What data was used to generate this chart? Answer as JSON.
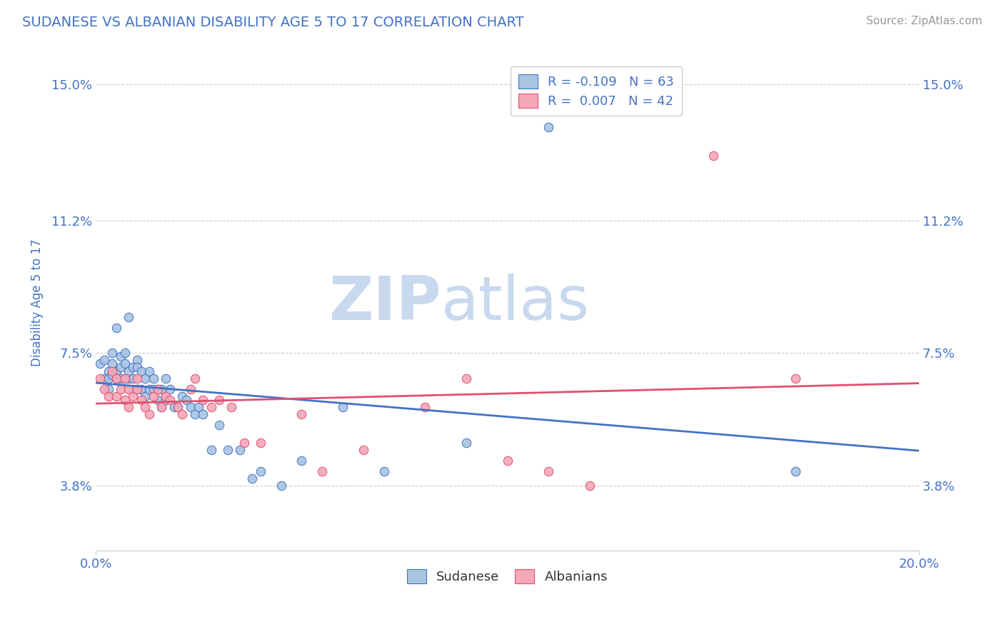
{
  "title": "SUDANESE VS ALBANIAN DISABILITY AGE 5 TO 17 CORRELATION CHART",
  "source_text": "Source: ZipAtlas.com",
  "ylabel": "Disability Age 5 to 17",
  "xlim": [
    0.0,
    0.2
  ],
  "ylim": [
    0.02,
    0.158
  ],
  "yticks": [
    0.038,
    0.075,
    0.112,
    0.15
  ],
  "ytick_labels": [
    "3.8%",
    "7.5%",
    "11.2%",
    "15.0%"
  ],
  "xticks": [
    0.0,
    0.2
  ],
  "xtick_labels": [
    "0.0%",
    "20.0%"
  ],
  "legend_r1": "R = -0.109   N = 63",
  "legend_r2": "R =  0.007   N = 42",
  "color_sudanese": "#a8c4e0",
  "color_albanians": "#f4a8b8",
  "color_line_sudanese": "#4472c4",
  "color_line_albanians": "#e05070",
  "title_color": "#4472c4",
  "axis_label_color": "#4472c4",
  "tick_label_color": "#4472c4",
  "source_color": "#999999",
  "watermark_zip": "ZIP",
  "watermark_atlas": "atlas",
  "watermark_color": "#c8d8ee",
  "sudanese_x": [
    0.001,
    0.002,
    0.002,
    0.003,
    0.003,
    0.003,
    0.004,
    0.004,
    0.004,
    0.005,
    0.005,
    0.005,
    0.006,
    0.006,
    0.006,
    0.007,
    0.007,
    0.007,
    0.008,
    0.008,
    0.008,
    0.009,
    0.009,
    0.009,
    0.01,
    0.01,
    0.01,
    0.011,
    0.011,
    0.012,
    0.012,
    0.013,
    0.013,
    0.014,
    0.014,
    0.015,
    0.015,
    0.016,
    0.016,
    0.017,
    0.017,
    0.018,
    0.019,
    0.02,
    0.021,
    0.022,
    0.023,
    0.024,
    0.025,
    0.026,
    0.028,
    0.03,
    0.032,
    0.035,
    0.038,
    0.04,
    0.045,
    0.05,
    0.06,
    0.07,
    0.09,
    0.11,
    0.17
  ],
  "sudanese_y": [
    0.072,
    0.068,
    0.073,
    0.065,
    0.07,
    0.068,
    0.069,
    0.072,
    0.075,
    0.07,
    0.068,
    0.082,
    0.071,
    0.068,
    0.074,
    0.072,
    0.068,
    0.075,
    0.068,
    0.07,
    0.085,
    0.065,
    0.071,
    0.068,
    0.065,
    0.073,
    0.071,
    0.065,
    0.07,
    0.063,
    0.068,
    0.065,
    0.07,
    0.065,
    0.068,
    0.062,
    0.065,
    0.06,
    0.065,
    0.062,
    0.068,
    0.065,
    0.06,
    0.06,
    0.063,
    0.062,
    0.06,
    0.058,
    0.06,
    0.058,
    0.048,
    0.055,
    0.048,
    0.048,
    0.04,
    0.042,
    0.038,
    0.045,
    0.06,
    0.042,
    0.05,
    0.138,
    0.042
  ],
  "albanians_x": [
    0.001,
    0.002,
    0.003,
    0.004,
    0.005,
    0.005,
    0.006,
    0.007,
    0.007,
    0.008,
    0.008,
    0.009,
    0.01,
    0.01,
    0.011,
    0.012,
    0.013,
    0.014,
    0.015,
    0.016,
    0.017,
    0.018,
    0.02,
    0.021,
    0.023,
    0.024,
    0.026,
    0.028,
    0.03,
    0.033,
    0.036,
    0.04,
    0.05,
    0.055,
    0.065,
    0.08,
    0.09,
    0.1,
    0.11,
    0.12,
    0.15,
    0.17
  ],
  "albanians_y": [
    0.068,
    0.065,
    0.063,
    0.07,
    0.063,
    0.068,
    0.065,
    0.062,
    0.068,
    0.06,
    0.065,
    0.063,
    0.065,
    0.068,
    0.062,
    0.06,
    0.058,
    0.063,
    0.065,
    0.06,
    0.063,
    0.062,
    0.06,
    0.058,
    0.065,
    0.068,
    0.062,
    0.06,
    0.062,
    0.06,
    0.05,
    0.05,
    0.058,
    0.042,
    0.048,
    0.06,
    0.068,
    0.045,
    0.042,
    0.038,
    0.13,
    0.068
  ]
}
